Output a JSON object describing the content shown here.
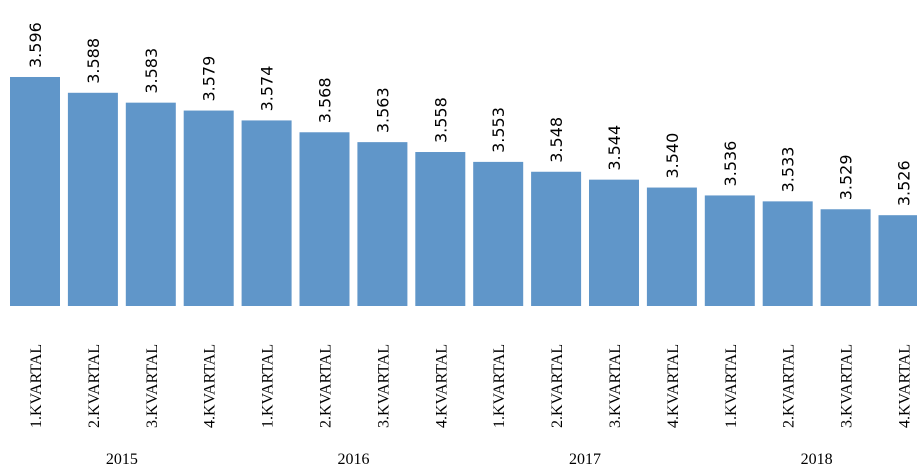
{
  "chart_data": {
    "type": "bar",
    "categories": [
      "1.KVARTAL",
      "2.KVARTAL",
      "3.KVARTAL",
      "4.KVARTAL",
      "1.KVARTAL",
      "2.KVARTAL",
      "3.KVARTAL",
      "4.KVARTAL",
      "1.KVARTAL",
      "2.KVARTAL",
      "3.KVARTAL",
      "4.KVARTAL",
      "1.KVARTAL",
      "2.KVARTAL",
      "3.KVARTAL",
      "4.KVARTAL"
    ],
    "category_groups": [
      "2015",
      "2016",
      "2017",
      "2018"
    ],
    "values": [
      3.596,
      3.588,
      3.583,
      3.579,
      3.574,
      3.568,
      3.563,
      3.558,
      3.553,
      3.548,
      3.544,
      3.54,
      3.536,
      3.533,
      3.529,
      3.526
    ],
    "value_labels": [
      "3.596",
      "3.588",
      "3.583",
      "3.579",
      "3.574",
      "3.568",
      "3.563",
      "3.558",
      "3.553",
      "3.548",
      "3.544",
      "3.540",
      "3.536",
      "3.533",
      "3.529",
      "3.526"
    ],
    "color": "#6096c9",
    "ylim": [
      3.48,
      3.635
    ]
  }
}
